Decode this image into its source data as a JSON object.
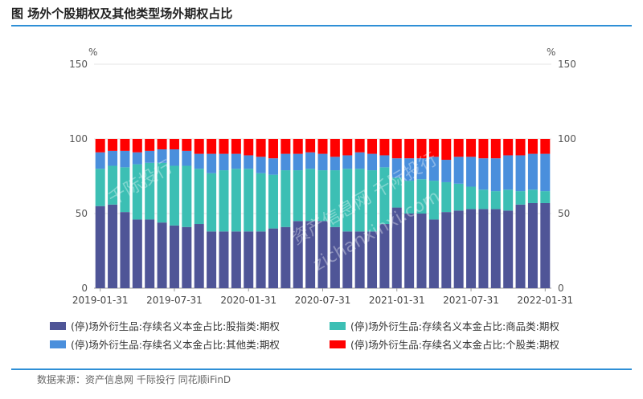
{
  "title": "图 场外个股期权及其他类型场外期权占比",
  "units": {
    "left": "%",
    "right": "%"
  },
  "source": "数据来源：资产信息网 千际投行 同花顺iFinD",
  "watermarks": [
    "千际投行",
    "资产信息网 千际投行",
    "zichanxinxi.com"
  ],
  "colors": {
    "index": "#4f5597",
    "commodity": "#3cbfb4",
    "other": "#4a8fdc",
    "stock": "#ff0000",
    "rule": "#2e8fd6"
  },
  "chart_data": {
    "type": "bar",
    "stacked": true,
    "ylim": [
      0,
      150
    ],
    "yticks": [
      0,
      50,
      100,
      150
    ],
    "xtick_labels": [
      "2019-01-31",
      "2019-07-31",
      "2020-01-31",
      "2020-07-31",
      "2021-01-31",
      "2021-07-31",
      "2022-01-31"
    ],
    "xtick_indices": [
      0,
      6,
      12,
      18,
      24,
      30,
      36
    ],
    "categories": [
      "2019-01",
      "2019-02",
      "2019-03",
      "2019-04",
      "2019-05",
      "2019-06",
      "2019-07",
      "2019-08",
      "2019-09",
      "2019-10",
      "2019-11",
      "2019-12",
      "2020-01",
      "2020-02",
      "2020-03",
      "2020-04",
      "2020-05",
      "2020-06",
      "2020-07",
      "2020-08",
      "2020-09",
      "2020-10",
      "2020-11",
      "2020-12",
      "2021-01",
      "2021-02",
      "2021-03",
      "2021-04",
      "2021-05",
      "2021-06",
      "2021-07",
      "2021-08",
      "2021-09",
      "2021-10",
      "2021-11",
      "2021-12",
      "2022-01"
    ],
    "series": [
      {
        "name": "(停)场外衍生品:存续名义本金占比:股指类:期权",
        "key": "index",
        "values": [
          55,
          56,
          51,
          46,
          46,
          44,
          42,
          41,
          43,
          38,
          38,
          38,
          38,
          38,
          40,
          41,
          45,
          45,
          45,
          41,
          38,
          38,
          38,
          43,
          54,
          50,
          50,
          46,
          51,
          52,
          53,
          53,
          53,
          52,
          56,
          57,
          57
        ]
      },
      {
        "name": "(停)场外衍生品:存续名义本金占比:商品类:期权",
        "key": "commodity",
        "values": [
          25,
          26,
          30,
          37,
          38,
          40,
          40,
          41,
          37,
          39,
          41,
          42,
          42,
          39,
          36,
          38,
          34,
          35,
          34,
          38,
          42,
          42,
          41,
          38,
          20,
          22,
          23,
          26,
          20,
          18,
          15,
          13,
          12,
          14,
          9,
          9,
          8
        ]
      },
      {
        "name": "(停)场外衍生品:存续名义本金占比:其他类:期权",
        "key": "other",
        "values": [
          11,
          10,
          11,
          8,
          8,
          9,
          11,
          10,
          10,
          13,
          11,
          10,
          9,
          11,
          11,
          11,
          11,
          11,
          11,
          9,
          9,
          11,
          11,
          8,
          13,
          15,
          14,
          16,
          15,
          18,
          20,
          21,
          22,
          23,
          24,
          24,
          25
        ]
      },
      {
        "name": "(停)场外衍生品:存续名义本金占比:个股类:期权",
        "key": "stock",
        "values": [
          9,
          8,
          8,
          9,
          8,
          7,
          7,
          8,
          10,
          10,
          10,
          10,
          11,
          12,
          13,
          10,
          10,
          9,
          10,
          12,
          11,
          9,
          10,
          11,
          13,
          13,
          13,
          12,
          14,
          12,
          12,
          13,
          13,
          11,
          11,
          10,
          10
        ]
      }
    ],
    "legend_position": "bottom"
  }
}
